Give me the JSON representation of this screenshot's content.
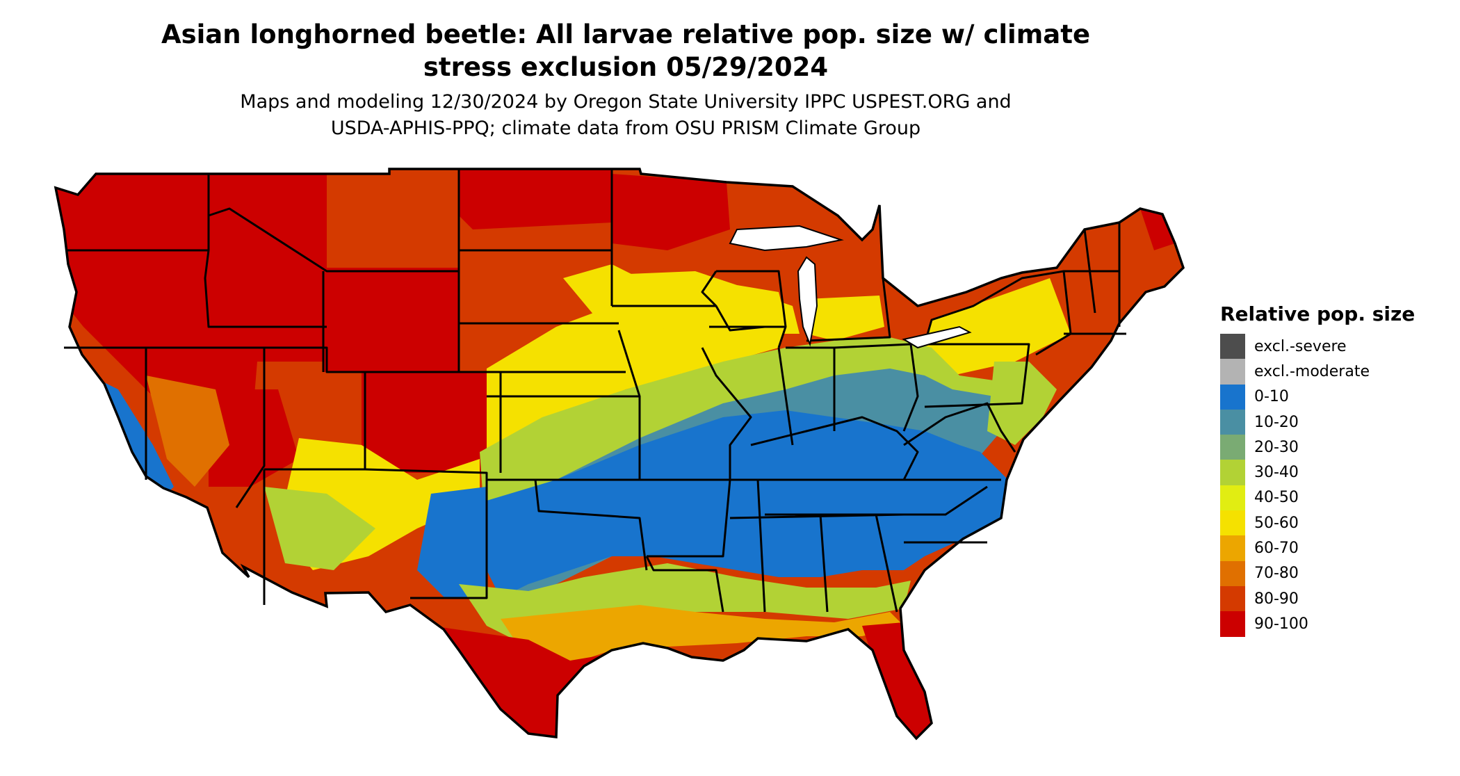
{
  "title": {
    "line1": "Asian longhorned beetle: All larvae relative pop. size w/ climate",
    "line2": "stress exclusion 05/29/2024"
  },
  "subtitle": {
    "line1": "Maps and modeling 12/30/2024 by Oregon State University IPPC USPEST.ORG and",
    "line2": "USDA-APHIS-PPQ; climate data from OSU PRISM Climate Group"
  },
  "legend": {
    "title": "Relative pop. size",
    "items": [
      {
        "label": "excl.-severe",
        "color": "#4d4d4d"
      },
      {
        "label": "excl.-moderate",
        "color": "#b3b3b3"
      },
      {
        "label": "0-10",
        "color": "#1874cd"
      },
      {
        "label": "10-20",
        "color": "#4a8fa3"
      },
      {
        "label": "20-30",
        "color": "#7aab73"
      },
      {
        "label": "30-40",
        "color": "#b2d235"
      },
      {
        "label": "40-50",
        "color": "#e1ed12"
      },
      {
        "label": "50-60",
        "color": "#f5e100"
      },
      {
        "label": "60-70",
        "color": "#eca600"
      },
      {
        "label": "70-80",
        "color": "#e07000"
      },
      {
        "label": "80-90",
        "color": "#d43a00"
      },
      {
        "label": "90-100",
        "color": "#cc0000"
      }
    ]
  },
  "map": {
    "region": "Contiguous United States",
    "border_color": "#000000"
  }
}
